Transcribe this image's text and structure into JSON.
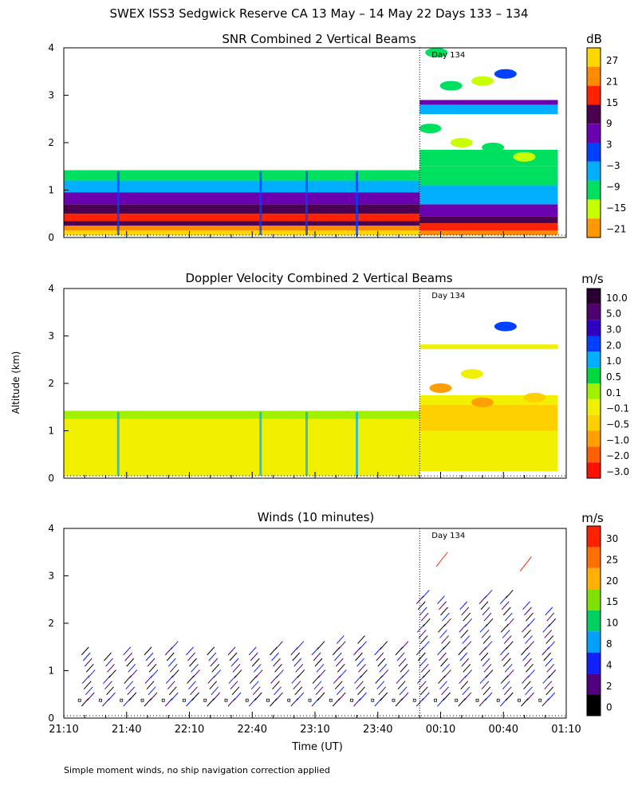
{
  "page": {
    "title": "SWEX ISS3 Sedgwick Reserve CA  13 May – 14 May 22 Days 133 – 134",
    "ylabel": "Altitude (km)",
    "xlabel": "Time (UT)",
    "footnote": "Simple moment winds, no ship navigation correction applied",
    "day_marker": "Day 134",
    "day_boundary_time": 170,
    "x_range": [
      0,
      240
    ],
    "x_ticks": [
      "21:10",
      "21:40",
      "22:10",
      "22:40",
      "23:10",
      "23:40",
      "00:10",
      "00:40",
      "01:10"
    ],
    "y_ticks": [
      "0",
      "1",
      "2",
      "3",
      "4"
    ],
    "y_range_km": [
      0,
      4
    ]
  },
  "chart_data": [
    {
      "type": "heatmap",
      "id": "snr",
      "title": "SNR Combined 2 Vertical Beams",
      "units": "dB",
      "ylabel": "Altitude (km)",
      "ylim": [
        0,
        4
      ],
      "colorbar_labels": [
        "27",
        "21",
        "15",
        "9",
        "3",
        "−3",
        "−9",
        "−15",
        "−21"
      ],
      "colorbar_colors": [
        "#ffd700",
        "#ff8c00",
        "#ff2200",
        "#4b0050",
        "#6a00b0",
        "#0040ff",
        "#00b0ff",
        "#00e060",
        "#c8ff00",
        "#ff9900"
      ],
      "layers_day133": [
        {
          "from": 0.05,
          "to": 0.15,
          "value": 27
        },
        {
          "from": 0.15,
          "to": 0.25,
          "value": 21
        },
        {
          "from": 0.25,
          "to": 0.35,
          "value": 6
        },
        {
          "from": 0.35,
          "to": 0.5,
          "value": 15
        },
        {
          "from": 0.5,
          "to": 0.7,
          "value": 6
        },
        {
          "from": 0.7,
          "to": 0.95,
          "value": 0
        },
        {
          "from": 0.95,
          "to": 1.2,
          "value": -9
        },
        {
          "from": 1.2,
          "to": 1.42,
          "value": -15
        }
      ],
      "layers_day134": [
        {
          "from": 0.05,
          "to": 0.15,
          "value": 21
        },
        {
          "from": 0.15,
          "to": 0.3,
          "value": 15
        },
        {
          "from": 0.3,
          "to": 0.45,
          "value": 6
        },
        {
          "from": 0.45,
          "to": 0.7,
          "value": 0
        },
        {
          "from": 0.7,
          "to": 1.1,
          "value": -9
        },
        {
          "from": 1.1,
          "to": 1.5,
          "value": -15
        },
        {
          "from": 1.5,
          "to": 1.85,
          "value": -18
        },
        {
          "from": 2.6,
          "to": 2.8,
          "value": -12
        },
        {
          "from": 2.8,
          "to": 2.9,
          "value": 0
        }
      ]
    },
    {
      "type": "heatmap",
      "id": "doppler",
      "title": "Doppler Velocity Combined 2 Vertical Beams",
      "units": "m/s",
      "ylabel": "Altitude (km)",
      "ylim": [
        0,
        4
      ],
      "colorbar_labels": [
        "10.0",
        "5.0",
        "3.0",
        "2.0",
        "1.0",
        "0.5",
        "0.1",
        "−0.1",
        "−0.5",
        "−1.0",
        "−2.0",
        "−3.0"
      ],
      "colorbar_colors": [
        "#2a0030",
        "#500070",
        "#3000c0",
        "#0040ff",
        "#00b0ff",
        "#00d840",
        "#a0f000",
        "#f0f000",
        "#ffd000",
        "#ffa000",
        "#ff6000",
        "#ff1000"
      ],
      "layers_day133": [
        {
          "from": 0.05,
          "to": 0.85,
          "value": -0.1
        },
        {
          "from": 0.85,
          "to": 1.25,
          "value": -0.3
        },
        {
          "from": 1.25,
          "to": 1.42,
          "value": 0.1
        }
      ],
      "layers_day134": [
        {
          "from": 0.15,
          "to": 1.0,
          "value": -0.1
        },
        {
          "from": 1.0,
          "to": 1.55,
          "value": -0.5
        },
        {
          "from": 1.55,
          "to": 1.75,
          "value": -0.3
        },
        {
          "from": 2.72,
          "to": 2.82,
          "value": -0.1
        }
      ]
    },
    {
      "type": "wind_barbs",
      "id": "winds",
      "title": "Winds (10 minutes)",
      "units": "m/s",
      "ylabel": "Altitude (km)",
      "ylim": [
        0,
        4
      ],
      "colorbar_labels": [
        "30",
        "25",
        "20",
        "15",
        "10",
        "8",
        "4",
        "2",
        "0"
      ],
      "colorbar_colors": [
        "#ff2000",
        "#ff7000",
        "#ffb000",
        "#80e000",
        "#00d060",
        "#00a0ff",
        "#1020ff",
        "#500080",
        "#000000"
      ],
      "profile_times": [
        10,
        20,
        30,
        40,
        50,
        60,
        70,
        80,
        90,
        100,
        110,
        120,
        130,
        140,
        150,
        160,
        170,
        180,
        190,
        200,
        210,
        220,
        230
      ],
      "profile_tops_km": [
        1.4,
        1.3,
        1.4,
        1.4,
        1.5,
        1.45,
        1.4,
        1.4,
        1.45,
        1.5,
        1.55,
        1.55,
        1.6,
        1.6,
        1.55,
        1.5,
        2.55,
        2.5,
        2.3,
        2.6,
        2.55,
        2.35,
        2.25
      ],
      "upper_barbs_km": [
        3.5,
        3.4
      ]
    }
  ]
}
